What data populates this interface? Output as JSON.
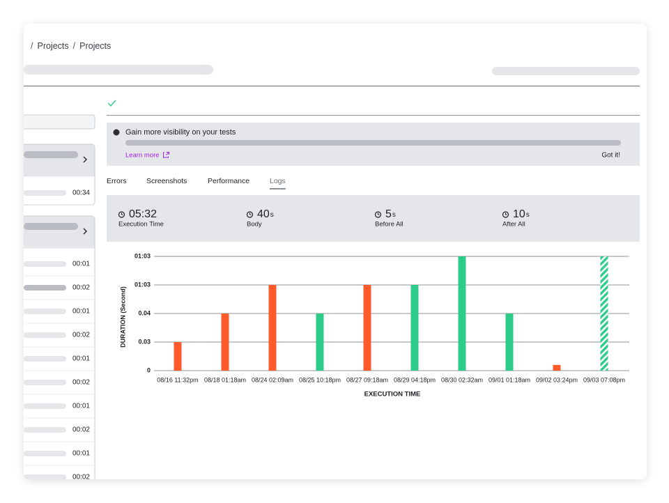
{
  "breadcrumb": {
    "separator": "/",
    "items": [
      "Projects",
      "Projects"
    ]
  },
  "sidebar": {
    "groups": [
      {
        "durations": [
          "00:34"
        ]
      },
      {
        "durations": [
          "00:01",
          "00:02",
          "00:01",
          "00:02",
          "00:01",
          "00:02",
          "00:01",
          "00:02",
          "00:01",
          "00:02"
        ],
        "selected": 1
      }
    ]
  },
  "banner": {
    "title": "Gain more visibility on your tests",
    "link": "Learn more",
    "dismiss": "Got it!"
  },
  "tabs": {
    "items": [
      "Errors",
      "Screenshots",
      "Performance",
      "Logs"
    ],
    "active": 3
  },
  "stats": [
    {
      "value": "05:32",
      "label": "Execution Time"
    },
    {
      "value": "40",
      "unit": "s",
      "label": "Body"
    },
    {
      "value": "5",
      "unit": "s",
      "label": "Before All"
    },
    {
      "value": "10",
      "unit": "s",
      "label": "After All"
    }
  ],
  "chart_data": {
    "type": "bar",
    "y_label": "DURATION (Second)",
    "x_label": "EXECUTION TIME",
    "categories": [
      "08/16 11:32pm",
      "08/18 01:18am",
      "08/24 02:09am",
      "08/25 10:18pm",
      "08/27 09:18am",
      "08/29 04:18pm",
      "08/30 02:32am",
      "09/01 01:18am",
      "09/02 03:24pm",
      "09/03 07:08pm"
    ],
    "values": [
      1,
      2,
      3,
      2,
      3,
      3,
      4,
      2,
      0.2,
      4
    ],
    "colors": [
      "#ff5a2b",
      "#ff5a2b",
      "#ff5a2b",
      "#2ecc8a",
      "#ff5a2b",
      "#2ecc8a",
      "#2ecc8a",
      "#2ecc8a",
      "#ff5a2b",
      "#2ecc8a"
    ],
    "striped": [
      false,
      false,
      false,
      false,
      false,
      false,
      false,
      false,
      false,
      true
    ],
    "ylim": [
      0,
      4
    ],
    "yticks": [
      {
        "value": 0,
        "label": "0"
      },
      {
        "value": 1,
        "label": "0.03"
      },
      {
        "value": 2,
        "label": "0.04"
      },
      {
        "value": 3,
        "label": "01:03"
      },
      {
        "value": 4,
        "label": "01:03"
      }
    ],
    "grid": true
  }
}
